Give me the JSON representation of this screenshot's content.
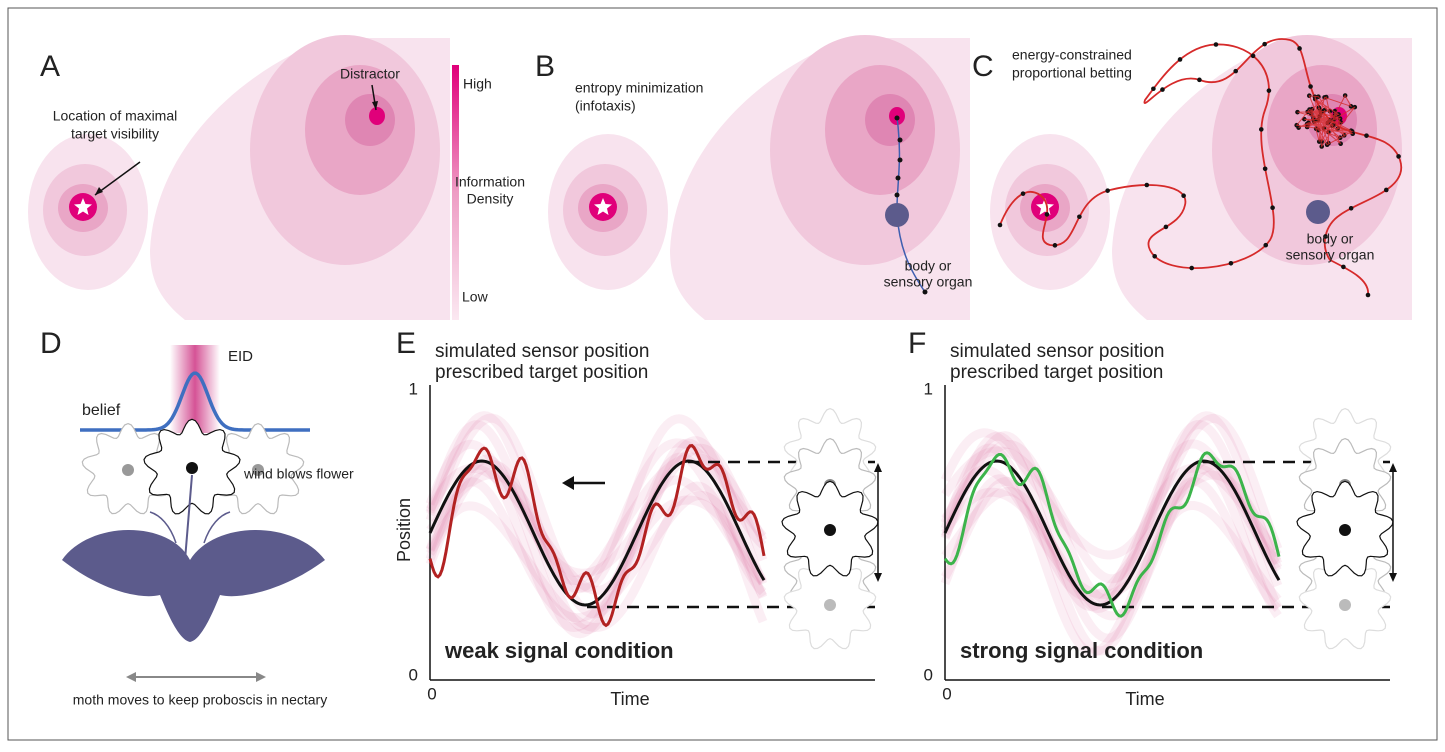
{
  "panels": {
    "A": {
      "letter": "A",
      "target": [
        "Location of maximal",
        "target visibility"
      ],
      "distractor": "Distractor"
    },
    "colorbar": {
      "high": "High",
      "title": [
        "Information",
        "Density"
      ],
      "low": "Low"
    },
    "B": {
      "letter": "B",
      "title": [
        "entropy minimization",
        "(infotaxis)"
      ],
      "organ": [
        "body or",
        "sensory organ"
      ]
    },
    "C": {
      "letter": "C",
      "title": [
        "energy-constrained",
        "proportional betting"
      ],
      "organ": [
        "body or",
        "sensory organ"
      ]
    },
    "D": {
      "letter": "D",
      "eid": "EID",
      "belief": "belief",
      "wind": "wind blows flower",
      "moth": "moth moves to keep proboscis in nectary"
    },
    "E": {
      "letter": "E",
      "legend": [
        "simulated sensor position",
        "prescribed target position"
      ],
      "ylabel": "Position",
      "xlabel": "Time",
      "ytop": 1,
      "ybottom": 0,
      "xorigin": 0,
      "condition": "weak signal condition"
    },
    "F": {
      "letter": "F",
      "legend": [
        "simulated sensor position",
        "prescribed target position"
      ],
      "xlabel": "Time",
      "ytop": 1,
      "ybottom": 0,
      "xorigin": 0,
      "condition": "strong signal condition"
    }
  }
}
